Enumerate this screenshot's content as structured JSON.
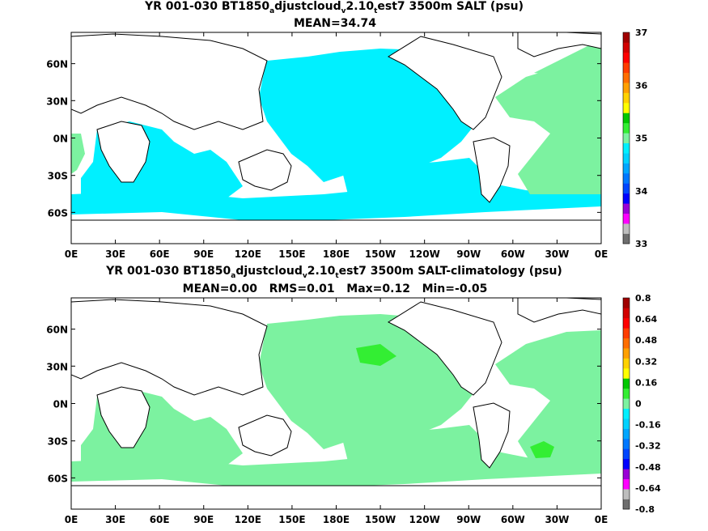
{
  "chart_data": [
    {
      "type": "heatmap",
      "title_parts": [
        "YR 001-030 BT1850",
        "a",
        "djustcloud",
        "v",
        "2.10",
        "t",
        "est7 3500m SALT (psu)"
      ],
      "subtitle": "MEAN=34.74",
      "x_ticks": [
        "0E",
        "30E",
        "60E",
        "90E",
        "120E",
        "150E",
        "180E",
        "150W",
        "120W",
        "90W",
        "60W",
        "30W",
        "0E"
      ],
      "y_ticks": [
        "60N",
        "30N",
        "0N",
        "30S",
        "60S"
      ],
      "colorbar": {
        "labels": [
          "37",
          "36",
          "35",
          "34",
          "33"
        ],
        "colors": [
          "#6e6e6e",
          "#bebebe",
          "#ff00ff",
          "#9a00d6",
          "#0000ff",
          "#0046ff",
          "#0078ff",
          "#00a6ff",
          "#00d2ff",
          "#00f0ff",
          "#7cf2a0",
          "#33ee33",
          "#00c800",
          "#ffff00",
          "#ffd200",
          "#ffa000",
          "#ff6e00",
          "#ff3c00",
          "#ff0000",
          "#d20000",
          "#a00000"
        ]
      },
      "field": "salinity"
    },
    {
      "type": "heatmap",
      "title_parts": [
        "YR 001-030 BT1850",
        "a",
        "djustcloud",
        "v",
        "2.10",
        "t",
        "est7 3500m SALT-climatology (psu)"
      ],
      "subtitle": "MEAN=0.00   RMS=0.01   Max=0.12   Min=-0.05",
      "x_ticks": [
        "0E",
        "30E",
        "60E",
        "90E",
        "120E",
        "150E",
        "180E",
        "150W",
        "120W",
        "90W",
        "60W",
        "30W",
        "0E"
      ],
      "y_ticks": [
        "60N",
        "30N",
        "0N",
        "30S",
        "60S"
      ],
      "colorbar": {
        "labels": [
          "0.8",
          "0.64",
          "0.48",
          "0.32",
          "0.16",
          "0",
          "-0.16",
          "-0.32",
          "-0.48",
          "-0.64",
          "-0.8"
        ],
        "colors": [
          "#6e6e6e",
          "#bebebe",
          "#ff00ff",
          "#9a00d6",
          "#0000ff",
          "#0046ff",
          "#0078ff",
          "#00a6ff",
          "#00d2ff",
          "#00f0ff",
          "#7cf2a0",
          "#33ee33",
          "#00c800",
          "#ffff00",
          "#ffd200",
          "#ffa000",
          "#ff6e00",
          "#ff3c00",
          "#ff0000",
          "#d20000",
          "#a00000"
        ]
      },
      "field": "anomaly"
    }
  ]
}
